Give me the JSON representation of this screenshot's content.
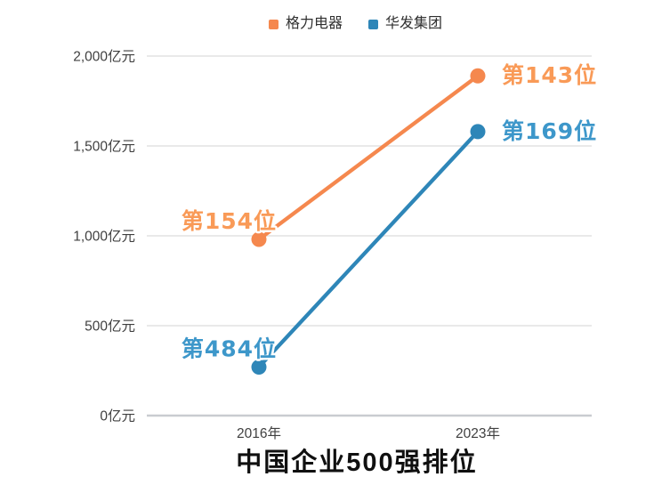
{
  "title": "中国企业500强排位",
  "legend": {
    "items": [
      {
        "label": "格力电器",
        "color": "#F5884E"
      },
      {
        "label": "华发集团",
        "color": "#2E86B8"
      }
    ]
  },
  "chart_data": {
    "type": "line",
    "title": "中国企业500强排位",
    "categories": [
      "2016年",
      "2023年"
    ],
    "series": [
      {
        "name": "格力电器",
        "color": "#F5884E",
        "label_color": "#F99A57",
        "values": [
          980,
          1890
        ],
        "point_labels": [
          "第154位",
          "第143位"
        ]
      },
      {
        "name": "华发集团",
        "color": "#2E86B8",
        "label_color": "#3D97CA",
        "values": [
          270,
          1580
        ],
        "point_labels": [
          "第484位",
          "第169位"
        ]
      }
    ],
    "unit": "亿元",
    "yticks": [
      0,
      500,
      1000,
      1500,
      2000
    ],
    "ytick_labels": [
      "0亿元",
      "500亿元",
      "1,000亿元",
      "1,500亿元",
      "2,000亿元"
    ],
    "ylim": [
      0,
      2000
    ],
    "grid": true,
    "legend_position": "top",
    "colors": {
      "gridline": "#E9E9E9",
      "axis_line": "#C9CCD0",
      "tick_text": "#3F3F3F",
      "title_text": "#101010"
    }
  }
}
